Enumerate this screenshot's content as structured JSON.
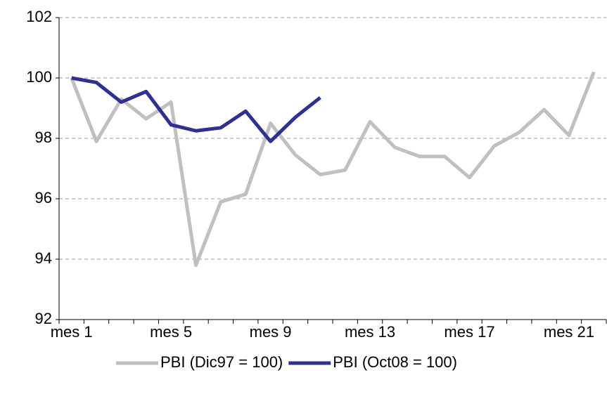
{
  "chart_data": {
    "type": "line",
    "categories": [
      "mes 1",
      null,
      null,
      null,
      "mes 5",
      null,
      null,
      null,
      "mes 9",
      null,
      null,
      null,
      "mes 13",
      null,
      null,
      null,
      "mes 17",
      null,
      null,
      null,
      "mes 21",
      null
    ],
    "series": [
      {
        "name": "PBI (Dic97 = 100)",
        "color": "#c0c0c0",
        "values": [
          100,
          97.9,
          99.3,
          98.65,
          99.2,
          93.8,
          95.9,
          96.15,
          98.5,
          97.45,
          96.8,
          96.95,
          98.55,
          97.7,
          97.4,
          97.4,
          96.7,
          97.75,
          98.2,
          98.95,
          98.1,
          100.2
        ]
      },
      {
        "name": "PBI (Oct08 = 100)",
        "color": "#2e3192",
        "values": [
          100,
          99.85,
          99.2,
          99.55,
          98.45,
          98.25,
          98.35,
          98.9,
          97.9,
          98.7,
          99.35,
          null,
          null,
          null,
          null,
          null,
          null,
          null,
          null,
          null,
          null,
          null
        ]
      }
    ],
    "ylim": [
      92,
      102
    ],
    "yticks": [
      92,
      94,
      96,
      98,
      100,
      102
    ],
    "grid": true,
    "legend": "bottom"
  }
}
